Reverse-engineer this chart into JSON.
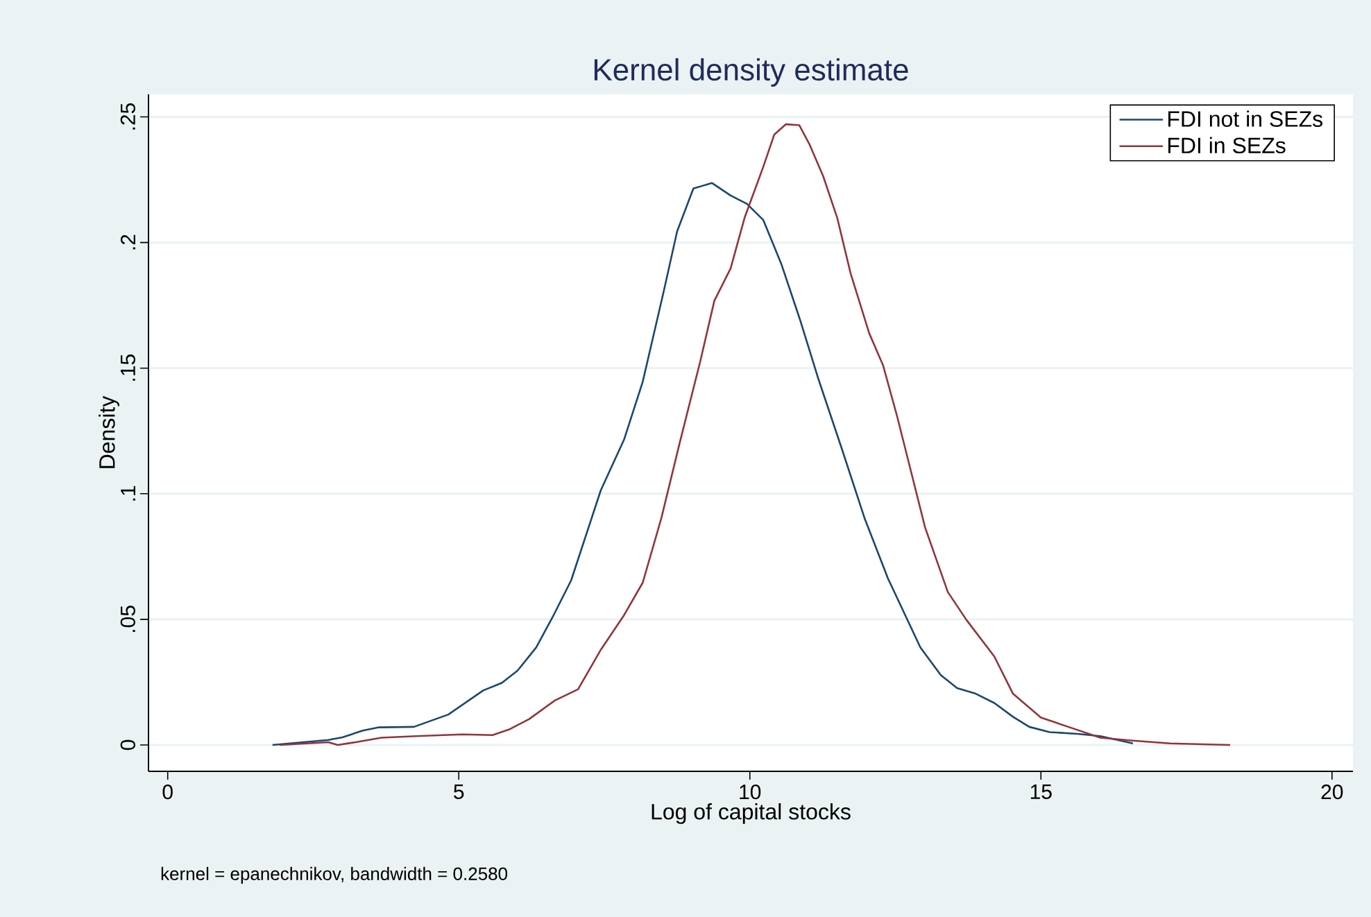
{
  "chart_data": {
    "type": "line",
    "title": "Kernel density estimate",
    "xlabel": "Log of capital stocks",
    "ylabel": "Density",
    "annotations": [
      "kernel = epanechnikov, bandwidth = 0.2580"
    ],
    "xlim": [
      -0.33,
      20.36
    ],
    "ylim": [
      -0.0105,
      0.259
    ],
    "xticks": [
      0,
      5,
      10,
      15,
      20
    ],
    "yticks": [
      {
        "value": 0,
        "label": "0"
      },
      {
        "value": 0.05,
        "label": ".05"
      },
      {
        "value": 0.1,
        "label": ".1"
      },
      {
        "value": 0.15,
        "label": ".15"
      },
      {
        "value": 0.2,
        "label": ".2"
      },
      {
        "value": 0.25,
        "label": ".25"
      }
    ],
    "grid": "y",
    "legend": "top right",
    "marker": "none",
    "line_style": "solid",
    "series": [
      {
        "name": "FDI not in SEZs",
        "color": "#1a476f",
        "x": [
          1.8,
          2.76,
          3.0,
          3.35,
          3.63,
          4.23,
          4.82,
          5.42,
          5.74,
          6.01,
          6.33,
          6.61,
          6.93,
          7.44,
          7.84,
          8.16,
          8.52,
          8.75,
          9.03,
          9.35,
          9.67,
          9.95,
          10.23,
          10.54,
          10.86,
          11.18,
          11.58,
          11.97,
          12.37,
          12.93,
          13.28,
          13.56,
          13.88,
          14.2,
          14.52,
          14.8,
          15.15,
          15.63,
          16.02,
          16.58
        ],
        "values": [
          0.0,
          0.002,
          0.003,
          0.0057,
          0.007,
          0.0072,
          0.0121,
          0.0217,
          0.0247,
          0.0296,
          0.0388,
          0.0508,
          0.0655,
          0.1014,
          0.1216,
          0.1446,
          0.1805,
          0.2044,
          0.2215,
          0.2237,
          0.2187,
          0.2154,
          0.209,
          0.1915,
          0.1694,
          0.1455,
          0.1179,
          0.0903,
          0.0664,
          0.0388,
          0.0278,
          0.0226,
          0.0204,
          0.0167,
          0.0112,
          0.0072,
          0.0051,
          0.0044,
          0.0035,
          0.0006
        ]
      },
      {
        "name": "FDI in SEZs",
        "color": "#90353b",
        "x": [
          1.92,
          2.76,
          2.92,
          3.23,
          3.67,
          4.27,
          5.06,
          5.58,
          5.86,
          6.21,
          6.65,
          7.05,
          7.44,
          7.84,
          8.16,
          8.48,
          8.79,
          9.15,
          9.39,
          9.67,
          9.91,
          10.23,
          10.42,
          10.62,
          10.85,
          11.02,
          11.26,
          11.5,
          11.73,
          12.05,
          12.29,
          12.53,
          12.77,
          13.01,
          13.4,
          13.72,
          14.2,
          14.52,
          15.0,
          15.47,
          16.02,
          16.58,
          17.22,
          18.25
        ],
        "values": [
          0.0,
          0.0011,
          0.0,
          0.0011,
          0.0029,
          0.0035,
          0.0042,
          0.0039,
          0.0061,
          0.0103,
          0.0177,
          0.0222,
          0.0379,
          0.0517,
          0.0646,
          0.0903,
          0.1198,
          0.1529,
          0.1768,
          0.1897,
          0.2099,
          0.2301,
          0.243,
          0.2471,
          0.2467,
          0.2393,
          0.2264,
          0.2099,
          0.1878,
          0.1639,
          0.151,
          0.1308,
          0.1087,
          0.0866,
          0.0609,
          0.0498,
          0.0352,
          0.0204,
          0.0109,
          0.0072,
          0.0029,
          0.0017,
          0.0006,
          0.0
        ]
      }
    ]
  }
}
